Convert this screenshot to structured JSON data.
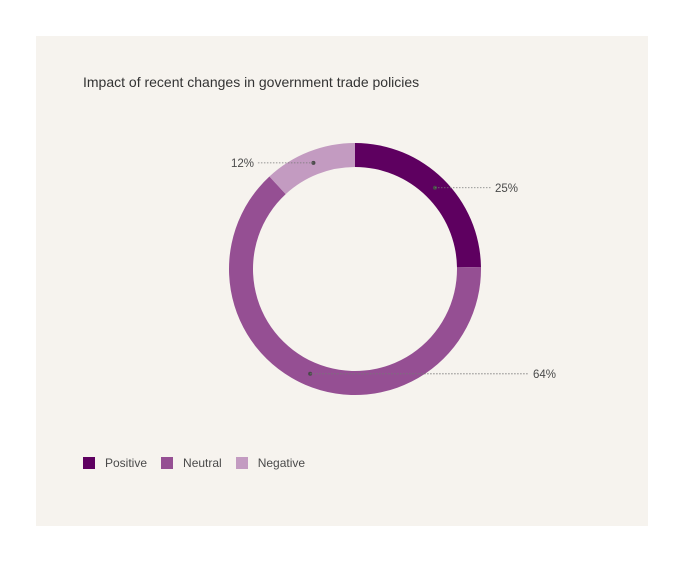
{
  "chart_data": {
    "type": "pie",
    "title": "Impact of recent changes in government trade policies",
    "categories": [
      "Positive",
      "Neutral",
      "Negative"
    ],
    "values": [
      25,
      64,
      12
    ],
    "value_labels": [
      "25%",
      "64%",
      "12%"
    ],
    "colors": [
      "#5e0060",
      "#954f93",
      "#c39bc1"
    ],
    "legend_position": "bottom-left"
  }
}
